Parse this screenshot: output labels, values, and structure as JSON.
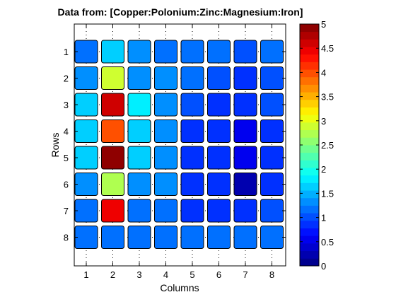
{
  "chart_data": {
    "type": "heatmap",
    "title": "Data from: [Copper:Polonium:Zinc:Magnesium:Iron]",
    "xlabel": "Columns",
    "ylabel": "Rows",
    "x_categories": [
      "1",
      "2",
      "3",
      "4",
      "5",
      "6",
      "7",
      "8"
    ],
    "y_categories": [
      "1",
      "2",
      "3",
      "4",
      "5",
      "6",
      "7",
      "8"
    ],
    "values": [
      [
        1.2,
        1.6,
        1.4,
        1.2,
        1.2,
        1.1,
        1.0,
        1.1
      ],
      [
        1.4,
        2.9,
        1.4,
        1.4,
        1.2,
        1.0,
        0.8,
        1.0
      ],
      [
        1.6,
        4.6,
        1.8,
        1.4,
        1.0,
        0.8,
        0.8,
        1.0
      ],
      [
        1.6,
        4.0,
        1.6,
        1.4,
        0.8,
        0.8,
        0.5,
        0.8
      ],
      [
        1.6,
        5.0,
        1.6,
        1.4,
        0.8,
        0.8,
        0.5,
        0.8
      ],
      [
        1.4,
        2.7,
        1.4,
        1.4,
        0.8,
        0.8,
        0.2,
        0.8
      ],
      [
        1.2,
        4.5,
        1.2,
        1.2,
        0.8,
        0.8,
        0.8,
        1.0
      ],
      [
        1.2,
        1.2,
        1.2,
        1.2,
        1.1,
        1.1,
        1.1,
        1.1
      ]
    ],
    "colorbar": {
      "range": [
        0,
        5
      ],
      "ticks": [
        "0",
        "0.5",
        "1",
        "1.5",
        "2",
        "2.5",
        "3",
        "3.5",
        "4",
        "4.5",
        "5"
      ],
      "colormap": "jet",
      "levels": 32
    },
    "grid": true
  }
}
